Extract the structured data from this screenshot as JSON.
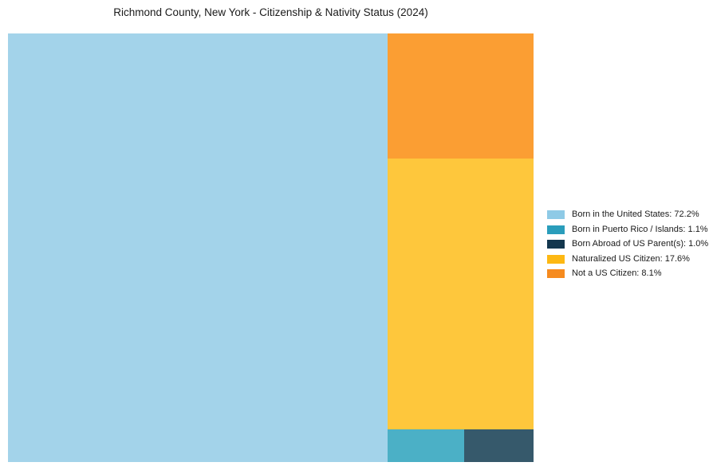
{
  "title": "Richmond County, New York - Citizenship & Nativity Status (2024)",
  "colors": {
    "background": "#ffffff",
    "text": "#1a1a1a"
  },
  "chart_data": {
    "type": "treemap",
    "title": "Richmond County, New York - Citizenship & Nativity Status (2024)",
    "unit": "%",
    "total": 100.0,
    "legend_position": "right-center",
    "grid": false,
    "series": [
      {
        "label": "Born in the United States",
        "value": 72.2,
        "color": "#8ecae6",
        "fill": "#a3d3ea"
      },
      {
        "label": "Born in Puerto Rico / Islands",
        "value": 1.1,
        "color": "#2a9dbb",
        "fill": "#4bb0c6"
      },
      {
        "label": "Born Abroad of US Parent(s)",
        "value": 1.0,
        "color": "#14374e",
        "fill": "#36596b"
      },
      {
        "label": "Naturalized US Citizen",
        "value": 17.6,
        "color": "#fdb813",
        "fill": "#fec73c"
      },
      {
        "label": "Not a US Citizen",
        "value": 8.1,
        "color": "#f68b1f",
        "fill": "#fb9e33"
      }
    ],
    "layout_order": {
      "left": 0,
      "right_column_top_to_bottom": [
        4,
        3
      ],
      "bottom_row_left_to_right": [
        1,
        2
      ]
    }
  }
}
